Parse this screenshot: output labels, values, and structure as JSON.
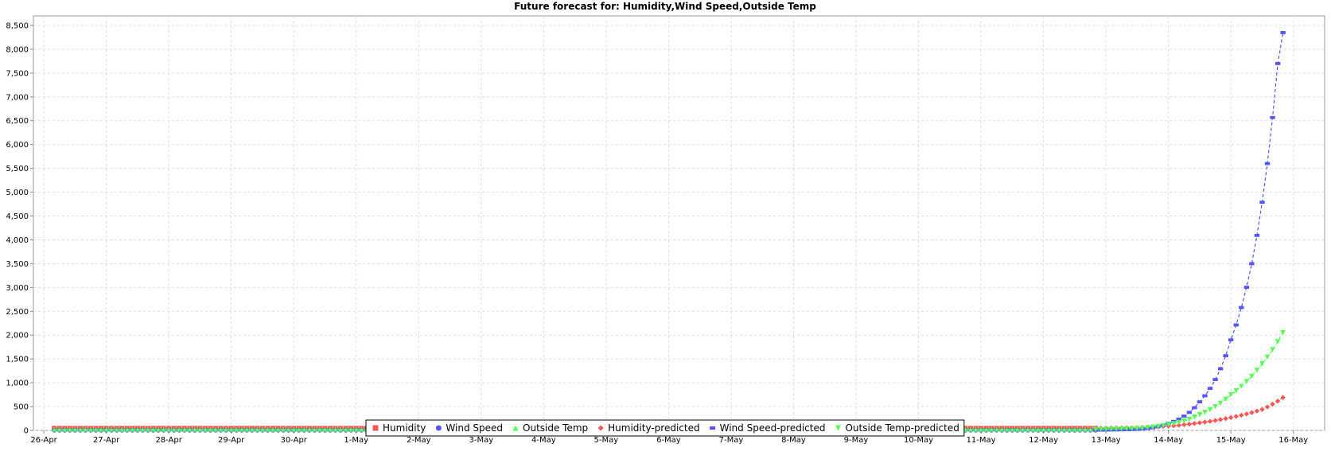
{
  "chart_data": {
    "type": "line",
    "title": "Future forecast for: Humidity,Wind Speed,Outside Temp",
    "xlabel": "",
    "ylabel": "",
    "x_ticks": [
      "26-Apr",
      "27-Apr",
      "28-Apr",
      "29-Apr",
      "30-Apr",
      "1-May",
      "2-May",
      "3-May",
      "4-May",
      "5-May",
      "6-May",
      "7-May",
      "8-May",
      "9-May",
      "10-May",
      "11-May",
      "12-May",
      "13-May",
      "14-May",
      "15-May",
      "16-May"
    ],
    "y_ticks": [
      "0",
      "500",
      "1,000",
      "1,500",
      "2,000",
      "2,500",
      "3,000",
      "3,500",
      "4,000",
      "4,500",
      "5,000",
      "5,500",
      "6,000",
      "6,500",
      "7,000",
      "7,500",
      "8,000",
      "8,500"
    ],
    "x_range": [
      "2025-04-25T20:00",
      "2025-05-16T12:00"
    ],
    "y_range": [
      0,
      8700
    ],
    "grid": true,
    "legend_position": "bottom",
    "series": [
      {
        "name": "Humidity",
        "color": "#ff5555",
        "marker": "square",
        "dashed": false,
        "x_start": "2025-04-26T04:00",
        "x_end": "2025-05-12T20:00",
        "step_hours": 2,
        "values_constant": 45
      },
      {
        "name": "Wind Speed",
        "color": "#5555ff",
        "marker": "circle",
        "dashed": false,
        "x_start": "2025-04-26T04:00",
        "x_end": "2025-05-12T20:00",
        "step_hours": 2,
        "values_constant": 5
      },
      {
        "name": "Outside Temp",
        "color": "#55ff55",
        "marker": "triangle-up",
        "dashed": false,
        "x_start": "2025-04-26T04:00",
        "x_end": "2025-05-12T20:00",
        "step_hours": 2,
        "values_constant": 20
      },
      {
        "name": "Humidity-predicted",
        "color": "#ff5555",
        "marker": "diamond",
        "dashed": true,
        "points": [
          [
            "2025-05-12T20:00",
            45
          ],
          [
            "2025-05-13T12:00",
            55
          ],
          [
            "2025-05-14T00:00",
            90
          ],
          [
            "2025-05-14T12:00",
            160
          ],
          [
            "2025-05-15T00:00",
            270
          ],
          [
            "2025-05-15T12:00",
            440
          ],
          [
            "2025-05-15T20:00",
            690
          ]
        ]
      },
      {
        "name": "Wind Speed-predicted",
        "color": "#5555ff",
        "marker": "bar",
        "dashed": true,
        "points": [
          [
            "2025-05-12T20:00",
            5
          ],
          [
            "2025-05-13T12:00",
            20
          ],
          [
            "2025-05-14T00:00",
            150
          ],
          [
            "2025-05-14T12:00",
            600
          ],
          [
            "2025-05-15T00:00",
            1900
          ],
          [
            "2025-05-15T08:00",
            3500
          ],
          [
            "2025-05-15T14:00",
            5600
          ],
          [
            "2025-05-15T18:00",
            7700
          ],
          [
            "2025-05-15T20:00",
            8350
          ]
        ]
      },
      {
        "name": "Outside Temp-predicted",
        "color": "#55ff55",
        "marker": "triangle-down",
        "dashed": true,
        "points": [
          [
            "2025-05-12T20:00",
            20
          ],
          [
            "2025-05-13T12:00",
            40
          ],
          [
            "2025-05-14T00:00",
            120
          ],
          [
            "2025-05-14T12:00",
            330
          ],
          [
            "2025-05-15T00:00",
            750
          ],
          [
            "2025-05-15T12:00",
            1400
          ],
          [
            "2025-05-15T20:00",
            2050
          ]
        ]
      }
    ]
  }
}
